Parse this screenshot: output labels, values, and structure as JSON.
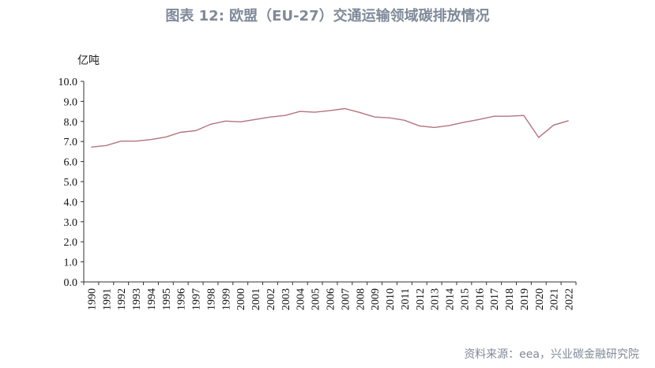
{
  "title": "图表 12: 欧盟（EU-27）交通运输领域碳排放情况",
  "unit": "亿吨",
  "source": "资料来源：eea，兴业碳金融研究院",
  "chart_data": {
    "type": "line",
    "title": "图表 12: 欧盟（EU-27）交通运输领域碳排放情况",
    "ylabel": "亿吨",
    "xlabel": "",
    "ylim": [
      0,
      10
    ],
    "yticks": [
      "0.0",
      "1.0",
      "2.0",
      "3.0",
      "4.0",
      "5.0",
      "6.0",
      "7.0",
      "8.0",
      "9.0",
      "10.0"
    ],
    "grid": false,
    "legend": "none",
    "line_color": "#b5737d",
    "x": [
      "1990",
      "1991",
      "1992",
      "1993",
      "1994",
      "1995",
      "1996",
      "1997",
      "1998",
      "1999",
      "2000",
      "2001",
      "2002",
      "2003",
      "2004",
      "2005",
      "2006",
      "2007",
      "2008",
      "2009",
      "2010",
      "2011",
      "2012",
      "2013",
      "2014",
      "2015",
      "2016",
      "2017",
      "2018",
      "2019",
      "2020",
      "2021",
      "2022"
    ],
    "series": [
      {
        "values": [
          6.72,
          6.8,
          7.02,
          7.02,
          7.1,
          7.22,
          7.46,
          7.54,
          7.86,
          8.02,
          7.98,
          8.1,
          8.22,
          8.3,
          8.5,
          8.46,
          8.54,
          8.64,
          8.45,
          8.22,
          8.18,
          8.06,
          7.78,
          7.7,
          7.8,
          7.96,
          8.1,
          8.26,
          8.26,
          8.3,
          7.2,
          7.82,
          8.04
        ]
      }
    ]
  }
}
